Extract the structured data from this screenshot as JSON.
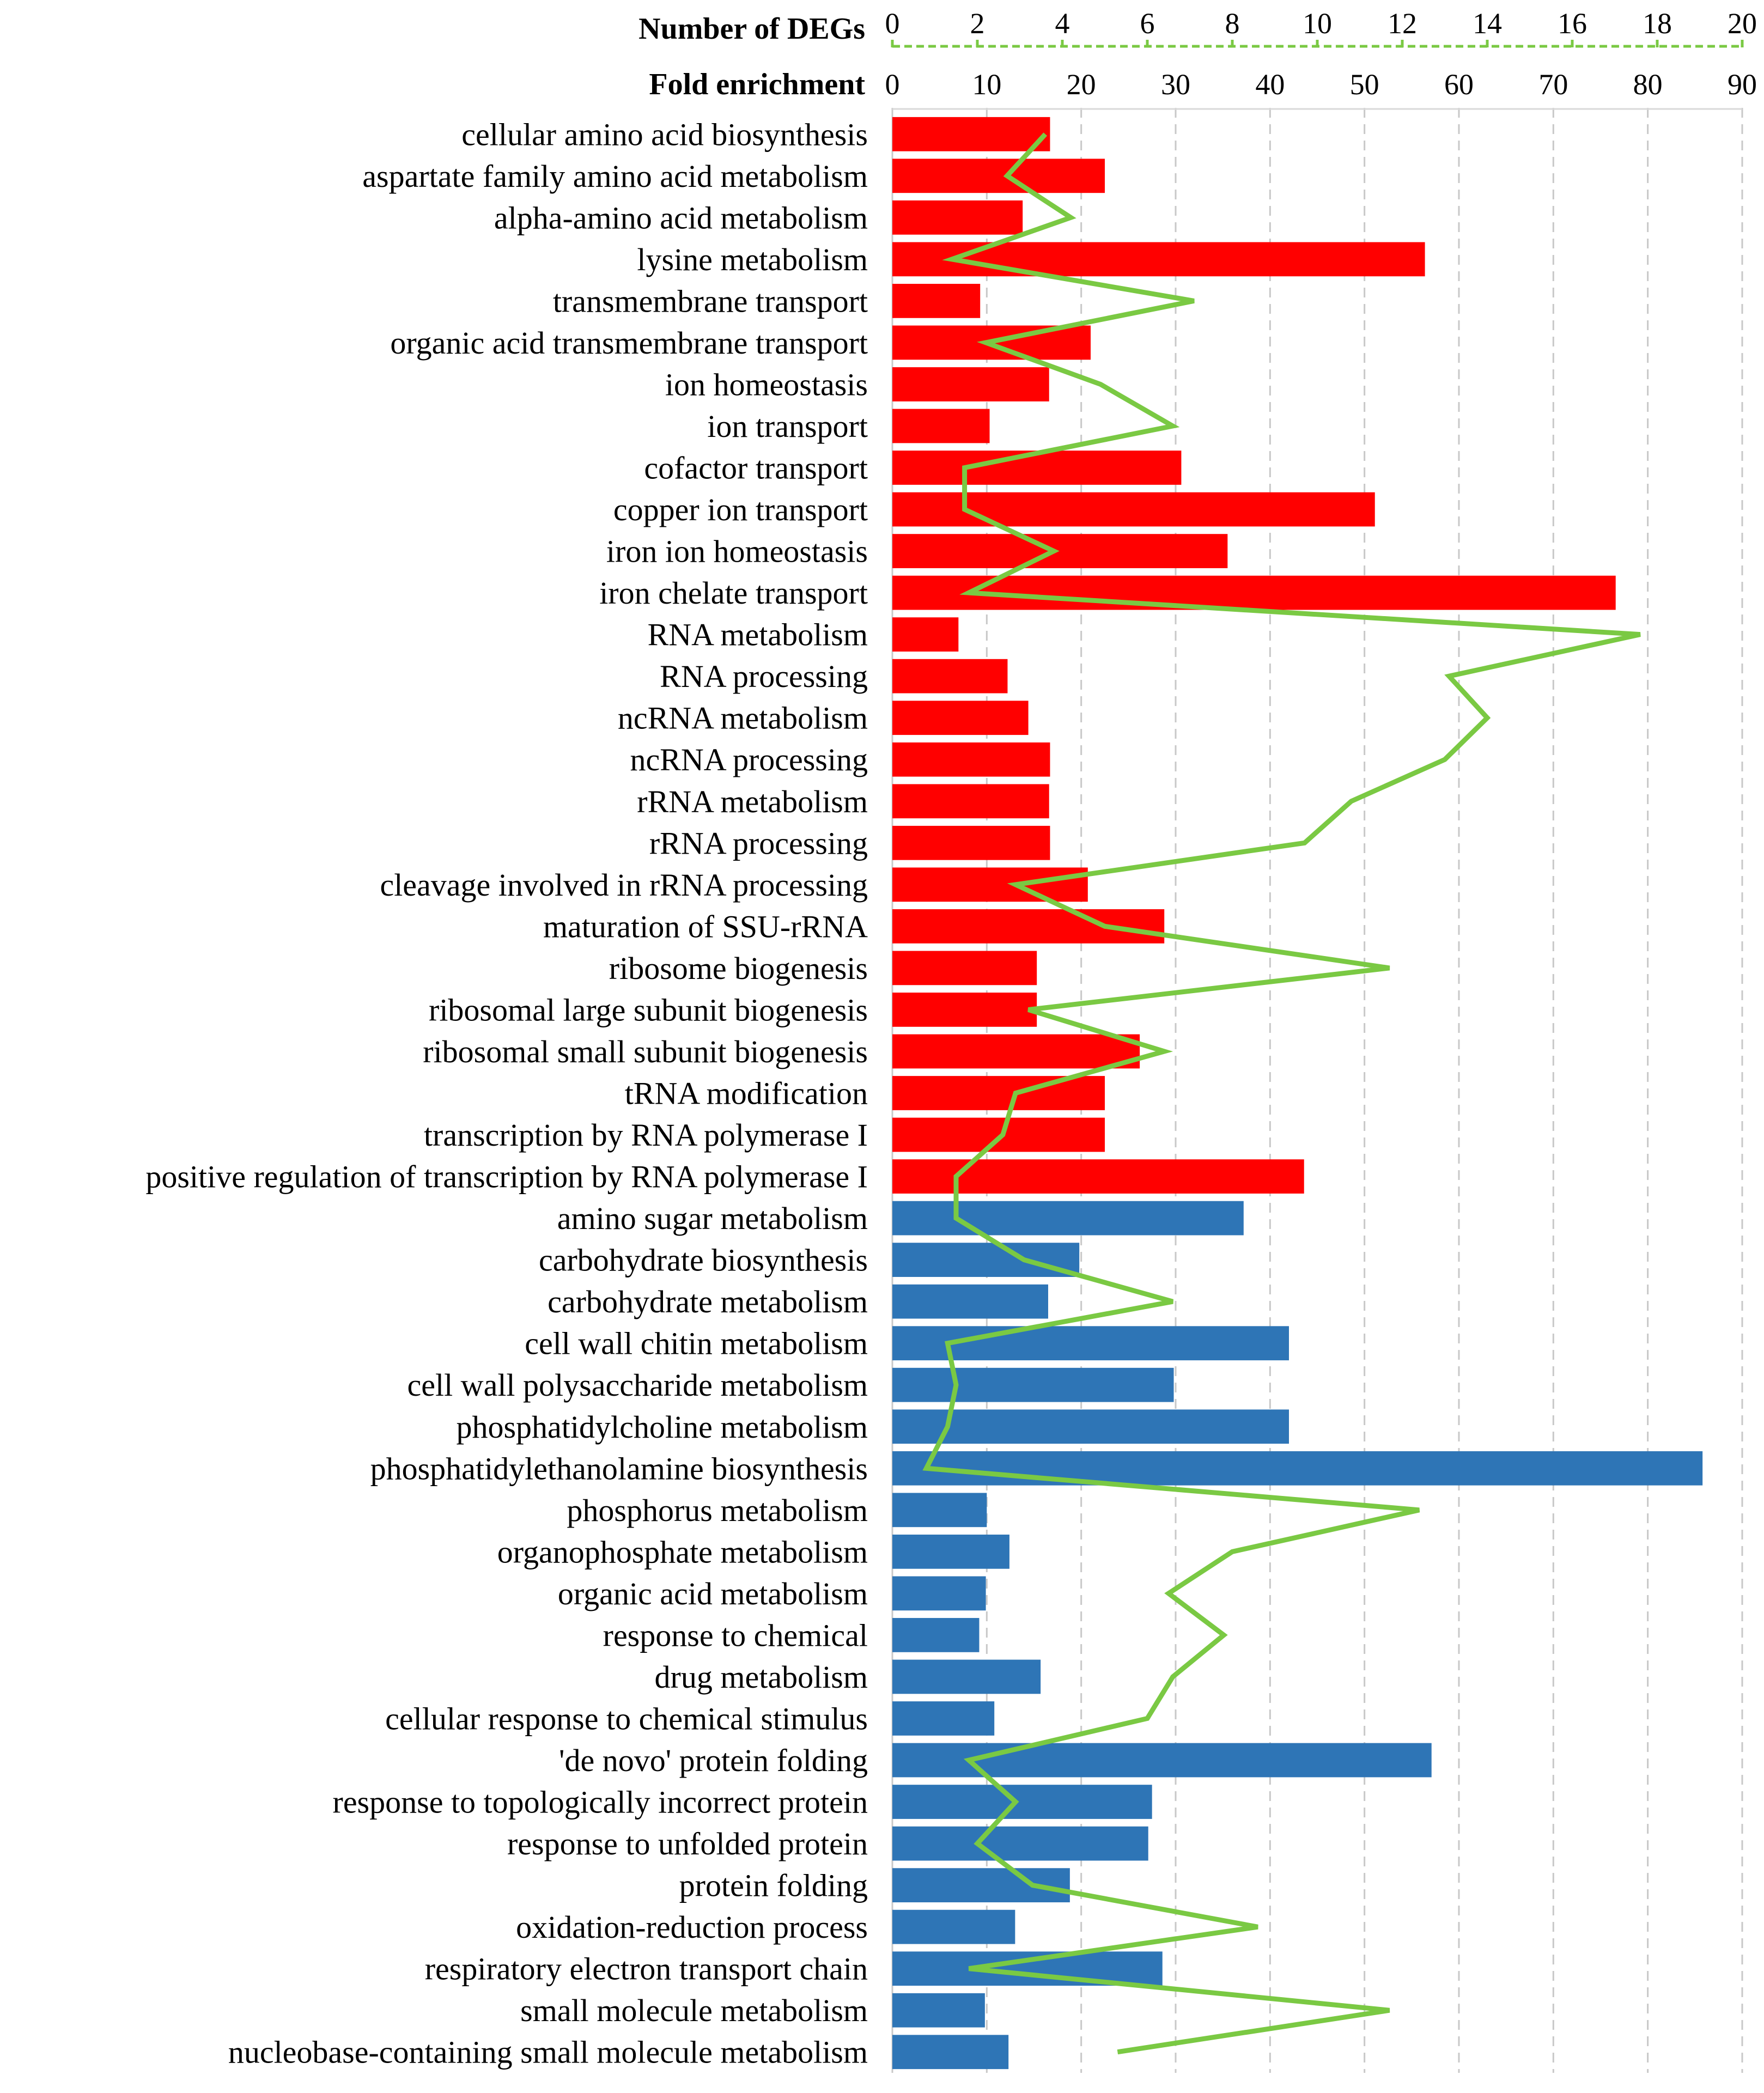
{
  "chart_data": {
    "type": "bar",
    "orientation": "horizontal",
    "axes": {
      "primary": {
        "title": "Fold enrichment",
        "range": [
          0,
          90
        ],
        "ticks": [
          0,
          10,
          20,
          30,
          40,
          50,
          60,
          70,
          80,
          90
        ]
      },
      "secondary": {
        "title": "Number of DEGs",
        "range": [
          0,
          20
        ],
        "ticks": [
          0,
          2,
          4,
          6,
          8,
          10,
          12,
          14,
          16,
          18,
          20
        ]
      }
    },
    "grid": true,
    "categories": [
      "cellular amino acid biosynthesis",
      "aspartate family amino acid metabolism",
      "alpha-amino acid metabolism",
      "lysine metabolism",
      "transmembrane transport",
      "organic acid transmembrane transport",
      "ion homeostasis",
      "ion transport",
      "cofactor transport",
      "copper ion transport",
      "iron ion homeostasis",
      "iron chelate transport",
      "RNA metabolism",
      "RNA processing",
      "ncRNA metabolism",
      "ncRNA processing",
      "rRNA metabolism",
      "rRNA processing",
      "cleavage involved in rRNA processing",
      "maturation of SSU-rRNA",
      "ribosome biogenesis",
      "ribosomal large subunit biogenesis",
      "ribosomal small subunit biogenesis",
      "tRNA modification",
      "transcription by RNA polymerase I",
      "positive regulation of transcription by RNA polymerase I",
      "amino sugar metabolism",
      "carbohydrate biosynthesis",
      "carbohydrate metabolism",
      "cell wall chitin metabolism",
      "cell wall polysaccharide metabolism",
      "phosphatidylcholine metabolism",
      "phosphatidylethanolamine biosynthesis",
      "phosphorus metabolism",
      "organophosphate metabolism",
      "organic acid metabolism",
      "response to chemical",
      "drug metabolism",
      "cellular response to chemical stimulus",
      "'de novo' protein folding",
      "response to topologically incorrect protein",
      "response to unfolded protein",
      "protein folding",
      "oxidation-reduction process",
      "respiratory electron transport chain",
      "small molecule metabolism",
      "nucleobase-containing small molecule metabolism"
    ],
    "series": [
      {
        "name": "Fold enrichment",
        "kind": "bar",
        "axis": "primary",
        "values": [
          16.7,
          22.5,
          13.8,
          56.4,
          9.3,
          21.0,
          16.6,
          10.3,
          30.6,
          51.1,
          35.5,
          76.6,
          7.0,
          12.2,
          14.4,
          16.7,
          16.6,
          16.7,
          20.7,
          28.8,
          15.3,
          15.3,
          26.2,
          22.5,
          22.5,
          43.6,
          37.2,
          19.8,
          16.5,
          42.0,
          29.8,
          42.0,
          85.8,
          10.0,
          12.4,
          9.9,
          9.2,
          15.7,
          10.8,
          57.1,
          27.5,
          27.1,
          18.8,
          13.0,
          28.6,
          9.8,
          12.3
        ],
        "colors": {
          "cellular amino acid biosynthesis": "#ff0000",
          "positive regulation of transcription by RNA polymerase I": "#ff0000",
          "amino sugar metabolism": "#2e75b6",
          "nucleobase-containing small molecule metabolism": "#2e75b6"
        }
      },
      {
        "name": "Number of DEGs",
        "kind": "line",
        "axis": "secondary",
        "color": "#7ac943",
        "values": [
          3.6,
          2.7,
          4.2,
          1.4,
          7.1,
          2.2,
          4.9,
          6.6,
          1.7,
          1.7,
          3.8,
          1.8,
          17.6,
          13.1,
          14.0,
          13.0,
          10.8,
          9.7,
          2.9,
          5.0,
          11.7,
          3.2,
          6.4,
          2.9,
          2.6,
          1.5,
          1.5,
          3.1,
          6.6,
          1.3,
          1.5,
          1.3,
          0.8,
          12.4,
          8.0,
          6.5,
          7.8,
          6.6,
          6.0,
          1.8,
          2.9,
          2.0,
          3.3,
          8.6,
          1.8,
          11.7,
          5.3
        ]
      }
    ],
    "legend": "none"
  }
}
